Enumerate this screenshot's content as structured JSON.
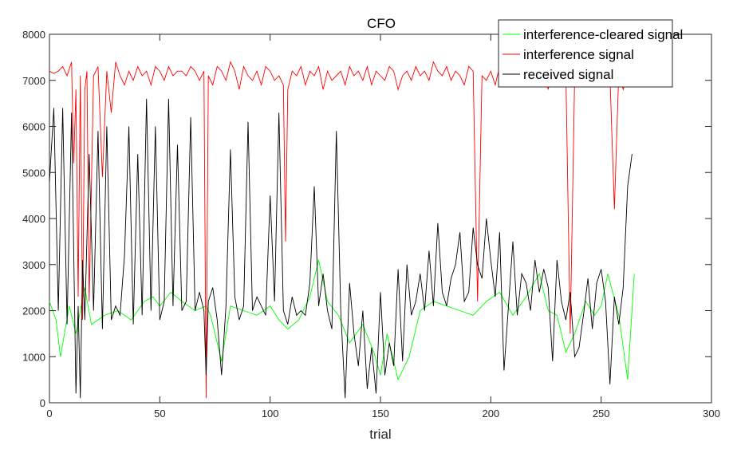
{
  "chart_data": {
    "type": "line",
    "title": "CFO",
    "xlabel": "trial",
    "ylabel": "",
    "xlim": [
      0,
      300
    ],
    "ylim": [
      0,
      8000
    ],
    "xticks": [
      0,
      50,
      100,
      150,
      200,
      250,
      300
    ],
    "yticks": [
      0,
      1000,
      2000,
      3000,
      4000,
      5000,
      6000,
      7000,
      8000
    ],
    "grid": false,
    "legend_position": "top-right",
    "series": [
      {
        "name": "interference-cleared signal",
        "color": "#00ff00",
        "x": [
          0,
          3,
          5,
          9,
          12,
          16,
          19,
          25,
          31,
          37,
          43,
          47,
          50,
          55,
          60,
          66,
          71,
          73,
          78,
          82,
          88,
          94,
          100,
          104,
          108,
          113,
          118,
          122,
          126,
          131,
          136,
          142,
          147,
          150,
          153,
          158,
          163,
          168,
          174,
          180,
          186,
          192,
          198,
          204,
          210,
          216,
          222,
          226,
          230,
          234,
          238,
          243,
          247,
          250,
          253,
          258,
          262,
          265
        ],
        "values": [
          2200,
          1800,
          1000,
          2100,
          1500,
          2500,
          1700,
          1900,
          2000,
          1800,
          2200,
          2300,
          2100,
          2400,
          2200,
          2000,
          2100,
          1900,
          900,
          2100,
          2000,
          1900,
          2100,
          1800,
          1600,
          1800,
          2300,
          3100,
          2200,
          1900,
          1300,
          1700,
          1100,
          600,
          1500,
          500,
          1000,
          2000,
          2200,
          2100,
          2000,
          1900,
          2200,
          2400,
          1900,
          2300,
          2800,
          2000,
          1900,
          1100,
          1500,
          2200,
          1900,
          2100,
          2800,
          1900,
          500,
          2800
        ]
      },
      {
        "name": "interference signal",
        "color": "#ff0000",
        "x": [
          0,
          2,
          4,
          6,
          8,
          10,
          11,
          12,
          13,
          14,
          15,
          16,
          17,
          18,
          20,
          22,
          24,
          26,
          28,
          30,
          32,
          34,
          36,
          38,
          40,
          42,
          44,
          46,
          48,
          50,
          52,
          54,
          56,
          58,
          60,
          62,
          64,
          66,
          68,
          70,
          71,
          72,
          74,
          76,
          78,
          80,
          82,
          84,
          86,
          88,
          90,
          92,
          94,
          96,
          98,
          100,
          102,
          104,
          106,
          107,
          108,
          110,
          112,
          114,
          116,
          118,
          120,
          122,
          124,
          126,
          128,
          130,
          132,
          134,
          136,
          138,
          140,
          142,
          144,
          146,
          148,
          150,
          152,
          154,
          156,
          158,
          160,
          162,
          164,
          166,
          168,
          170,
          172,
          174,
          176,
          178,
          180,
          182,
          184,
          186,
          188,
          190,
          192,
          194,
          196,
          198,
          200,
          202,
          204,
          206,
          208,
          210,
          212,
          214,
          216,
          218,
          220,
          222,
          224,
          226,
          228,
          230,
          232,
          234,
          236,
          238,
          240,
          242,
          244,
          246,
          248,
          250,
          252,
          254,
          256,
          258,
          260,
          262,
          264
        ],
        "values": [
          7200,
          7150,
          7200,
          7300,
          7100,
          7400,
          5200,
          6800,
          2300,
          7100,
          1800,
          6800,
          7200,
          2200,
          7100,
          7300,
          4900,
          7200,
          6300,
          7400,
          7100,
          6900,
          7200,
          7000,
          7300,
          7100,
          7200,
          6900,
          7300,
          7200,
          7000,
          7300,
          7100,
          7200,
          7200,
          7100,
          7300,
          7200,
          7000,
          7200,
          100,
          7100,
          6900,
          7300,
          7200,
          7000,
          7400,
          7200,
          6800,
          7300,
          7100,
          7000,
          7200,
          6900,
          7300,
          7200,
          7000,
          7100,
          6900,
          3500,
          6800,
          7200,
          7100,
          7300,
          6900,
          7200,
          7100,
          7300,
          6800,
          7200,
          7000,
          7100,
          7200,
          6900,
          7300,
          7100,
          7200,
          7000,
          7300,
          6900,
          7200,
          7100,
          7000,
          7300,
          7200,
          6800,
          7100,
          7200,
          7000,
          7300,
          7100,
          7200,
          7000,
          7400,
          7200,
          7100,
          7300,
          7000,
          7200,
          7100,
          6900,
          7300,
          7200,
          2200,
          7100,
          7000,
          7200,
          6900,
          7300,
          7100,
          7000,
          7200,
          7100,
          6900,
          7300,
          7200,
          7000,
          7100,
          7200,
          6800,
          7300,
          7100,
          7000,
          7200,
          1500,
          7100,
          6900,
          7200,
          7000,
          7300,
          7100,
          7200,
          6900,
          7100,
          4200,
          7200,
          6800,
          7100,
          7000
        ]
      },
      {
        "name": "received signal",
        "color": "#000000",
        "x": [
          0,
          2,
          4,
          6,
          8,
          10,
          12,
          13,
          14,
          15,
          16,
          18,
          20,
          22,
          24,
          26,
          28,
          30,
          32,
          34,
          36,
          38,
          40,
          42,
          44,
          46,
          48,
          50,
          52,
          54,
          56,
          58,
          60,
          62,
          64,
          66,
          68,
          70,
          71,
          72,
          74,
          76,
          78,
          80,
          82,
          84,
          86,
          88,
          90,
          92,
          94,
          96,
          98,
          100,
          102,
          104,
          106,
          108,
          110,
          112,
          114,
          116,
          118,
          120,
          122,
          124,
          126,
          128,
          130,
          132,
          134,
          136,
          138,
          140,
          142,
          144,
          146,
          148,
          150,
          152,
          154,
          156,
          158,
          160,
          162,
          164,
          166,
          168,
          170,
          172,
          174,
          176,
          178,
          180,
          182,
          184,
          186,
          188,
          190,
          192,
          194,
          196,
          198,
          200,
          202,
          204,
          206,
          208,
          210,
          212,
          214,
          216,
          218,
          220,
          222,
          224,
          226,
          228,
          230,
          232,
          234,
          236,
          238,
          240,
          242,
          244,
          246,
          248,
          250,
          252,
          254,
          256,
          258,
          260,
          262,
          264
        ],
        "values": [
          4800,
          6400,
          2000,
          6400,
          1700,
          6300,
          200,
          2100,
          100,
          3100,
          1800,
          5400,
          2000,
          5900,
          1600,
          6000,
          1800,
          2100,
          1900,
          3200,
          6000,
          1700,
          5400,
          1900,
          6600,
          2000,
          6000,
          1800,
          2200,
          6600,
          2100,
          5600,
          2000,
          2200,
          6200,
          2000,
          2400,
          2000,
          600,
          2200,
          2500,
          1800,
          600,
          2100,
          5500,
          2300,
          1800,
          2100,
          6100,
          2000,
          2300,
          2100,
          1900,
          4500,
          2200,
          6300,
          2000,
          1700,
          2300,
          1900,
          2000,
          1900,
          2600,
          4700,
          2100,
          2800,
          2000,
          1600,
          5900,
          2000,
          100,
          2600,
          1500,
          800,
          2000,
          300,
          1200,
          200,
          2400,
          600,
          1300,
          800,
          2900,
          900,
          3000,
          1900,
          2200,
          2800,
          2000,
          3300,
          2100,
          3900,
          2400,
          2100,
          2700,
          3000,
          3700,
          2200,
          2400,
          3800,
          3000,
          2700,
          4000,
          3100,
          2300,
          3700,
          700,
          2100,
          3500,
          1900,
          2800,
          2600,
          2000,
          3100,
          2400,
          2900,
          2500,
          900,
          3100,
          2200,
          1800,
          2400,
          1000,
          1200,
          1900,
          2700,
          1600,
          2600,
          2900,
          2200,
          400,
          2300,
          1700,
          2500,
          4700,
          5400
        ]
      }
    ]
  }
}
